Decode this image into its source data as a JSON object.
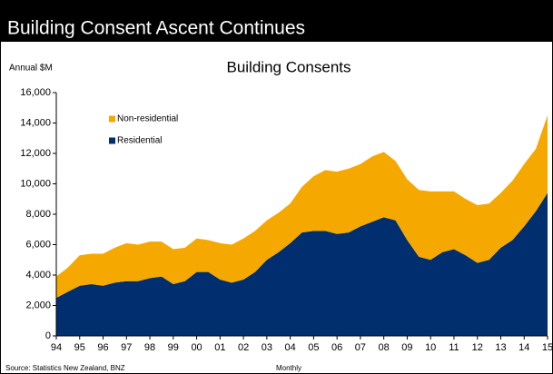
{
  "chart_data": {
    "type": "stacked_area",
    "header": "Building Consent Ascent Continues",
    "title": "Building Consents",
    "ylabel": "Annual $M",
    "xlabel": "Monthly",
    "source": "Source: Statistics New Zealand, BNZ",
    "categories": [
      "94",
      null,
      "95",
      null,
      "96",
      null,
      "97",
      null,
      "98",
      null,
      "99",
      null,
      "00",
      null,
      "01",
      null,
      "02",
      null,
      "03",
      null,
      "04",
      null,
      "05",
      null,
      "06",
      null,
      "07",
      null,
      "08",
      null,
      "09",
      null,
      "10",
      null,
      "11",
      null,
      "12",
      null,
      "13",
      null,
      "14",
      null,
      "15"
    ],
    "series": [
      {
        "name": "Residential",
        "color": "#002e6e",
        "values": [
          2500,
          2900,
          3300,
          3400,
          3300,
          3500,
          3600,
          3600,
          3800,
          3900,
          3400,
          3600,
          4200,
          4200,
          3700,
          3500,
          3700,
          4200,
          5000,
          5500,
          6100,
          6800,
          6900,
          6900,
          6700,
          6800,
          7200,
          7500,
          7800,
          7600,
          6300,
          5200,
          5000,
          5500,
          5700,
          5300,
          4800,
          5000,
          5800,
          6300,
          7200,
          8200,
          9400
        ]
      },
      {
        "name": "Non-residential",
        "color": "#f5a800",
        "values": [
          1400,
          1600,
          2000,
          2000,
          2100,
          2300,
          2500,
          2400,
          2400,
          2300,
          2300,
          2200,
          2200,
          2100,
          2400,
          2500,
          2700,
          2700,
          2600,
          2600,
          2600,
          3000,
          3600,
          4000,
          4100,
          4200,
          4100,
          4300,
          4300,
          3900,
          4000,
          4400,
          4500,
          4000,
          3800,
          3700,
          3800,
          3700,
          3600,
          3900,
          4100,
          4100,
          5100
        ]
      }
    ],
    "ylim": [
      0,
      16000
    ],
    "yticks": [
      0,
      {
        "value": 2000,
        "label": "2,000"
      },
      {
        "value": 4000,
        "label": "4,000"
      },
      {
        "value": 6000,
        "label": "6,000"
      },
      {
        "value": 8000,
        "label": "8,000"
      },
      {
        "value": 10000,
        "label": "10,000"
      },
      {
        "value": 12000,
        "label": "12,000"
      },
      {
        "value": 14000,
        "label": "14,000"
      },
      {
        "value": 16000,
        "label": "16,000"
      }
    ],
    "legend": "upper left"
  }
}
